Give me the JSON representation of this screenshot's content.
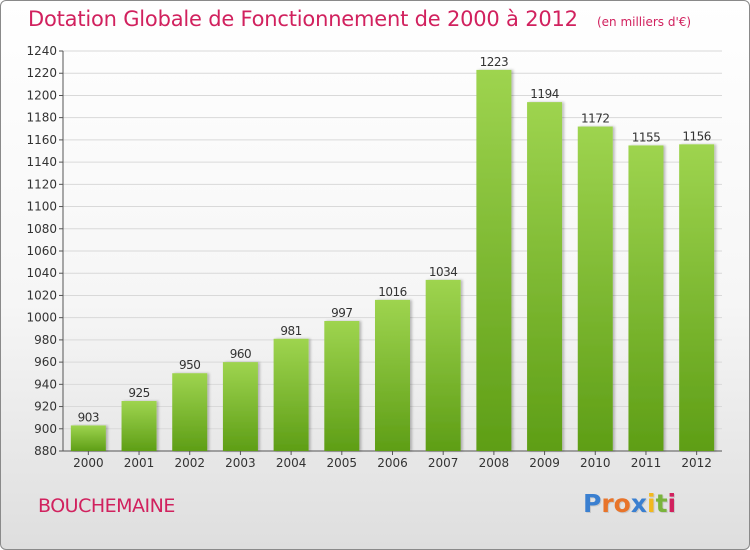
{
  "title": "Dotation Globale de Fonctionnement de 2000 à 2012",
  "unit": "(en milliers d'€)",
  "commune": "BOUCHEMAINE",
  "logo": {
    "text": "Proxiti",
    "letters": [
      {
        "ch": "P",
        "color": "#3a7fd0"
      },
      {
        "ch": "r",
        "color": "#e8742a"
      },
      {
        "ch": "o",
        "color": "#e8742a"
      },
      {
        "ch": "x",
        "color": "#3a7fd0"
      },
      {
        "ch": "i",
        "color": "#f2b81f"
      },
      {
        "ch": "t",
        "color": "#7ab43c"
      },
      {
        "ch": "i",
        "color": "#d1215e"
      }
    ]
  },
  "colors": {
    "accent": "#d1215e",
    "bar_top": "#9ed44f",
    "bar_bottom": "#5e9e16"
  },
  "chart_data": {
    "type": "bar",
    "title": "Dotation Globale de Fonctionnement de 2000 à 2012",
    "subtitle": "(en milliers d'€)",
    "categories": [
      "2000",
      "2001",
      "2002",
      "2003",
      "2004",
      "2005",
      "2006",
      "2007",
      "2008",
      "2009",
      "2010",
      "2011",
      "2012"
    ],
    "values": [
      903,
      925,
      950,
      960,
      981,
      997,
      1016,
      1034,
      1223,
      1194,
      1172,
      1155,
      1156
    ],
    "ylim": [
      880,
      1240
    ],
    "yticks": [
      880,
      900,
      920,
      940,
      960,
      980,
      1000,
      1020,
      1040,
      1060,
      1080,
      1100,
      1120,
      1140,
      1160,
      1180,
      1200,
      1220,
      1240
    ],
    "grid": true,
    "xlabel": "",
    "ylabel": ""
  }
}
